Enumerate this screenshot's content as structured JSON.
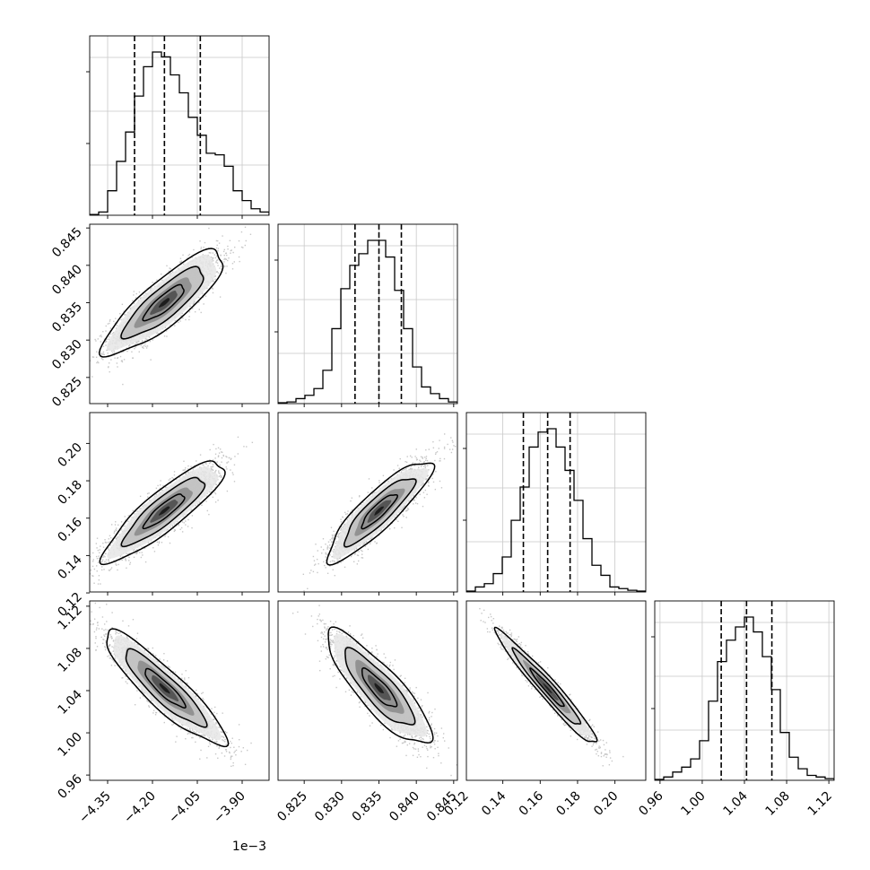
{
  "chart_data": {
    "type": "corner",
    "n_params": 4,
    "grid": true,
    "histogram_color": "#000000",
    "scatter_color": "#9a9a9a",
    "contour_color": "#000000",
    "offset_text": "1e−3",
    "axis_scale_note_param": 0,
    "params": [
      {
        "range": [
          -4.41,
          -3.81
        ],
        "ticks": [
          -4.35,
          -4.2,
          -4.05,
          -3.9
        ],
        "tick_labels": [
          "−4.35",
          "−4.20",
          "−4.05",
          "−3.90"
        ],
        "quantiles": [
          -4.26,
          -4.16,
          -4.04
        ],
        "median": -4.16,
        "sigma": 0.09
      },
      {
        "range": [
          0.8215,
          0.8455
        ],
        "ticks": [
          0.825,
          0.83,
          0.835,
          0.84,
          0.845
        ],
        "tick_labels": [
          "0.825",
          "0.830",
          "0.835",
          "0.840",
          "0.845"
        ],
        "quantiles": [
          0.8318,
          0.835,
          0.838
        ],
        "median": 0.835,
        "sigma": 0.0031
      },
      {
        "range": [
          0.1205,
          0.2165
        ],
        "ticks": [
          0.12,
          0.14,
          0.16,
          0.18,
          0.2
        ],
        "tick_labels": [
          "0.12",
          "0.14",
          "0.16",
          "0.18",
          "0.20"
        ],
        "quantiles": [
          0.151,
          0.164,
          0.176
        ],
        "median": 0.164,
        "sigma": 0.012
      },
      {
        "range": [
          0.955,
          1.125
        ],
        "ticks": [
          0.96,
          1.0,
          1.04,
          1.08,
          1.12
        ],
        "tick_labels": [
          "0.96",
          "1.00",
          "1.04",
          "1.08",
          "1.12"
        ],
        "quantiles": [
          1.018,
          1.042,
          1.066
        ],
        "median": 1.042,
        "sigma": 0.024
      }
    ],
    "correlations": [
      [
        1.0,
        0.85,
        0.88,
        -0.9
      ],
      [
        0.85,
        1.0,
        0.88,
        -0.85
      ],
      [
        0.88,
        0.88,
        1.0,
        -0.97
      ],
      [
        -0.9,
        -0.85,
        -0.97,
        1.0
      ]
    ],
    "histograms": [
      {
        "bin_edges": [
          -4.41,
          -4.38,
          -4.35,
          -4.32,
          -4.29,
          -4.26,
          -4.23,
          -4.2,
          -4.17,
          -4.14,
          -4.11,
          -4.08,
          -4.05,
          -4.02,
          -3.99,
          -3.96,
          -3.93,
          -3.9,
          -3.87,
          -3.84,
          -3.81
        ],
        "counts": [
          0.005,
          0.02,
          0.15,
          0.33,
          0.51,
          0.73,
          0.91,
          1.0,
          0.97,
          0.86,
          0.75,
          0.6,
          0.49,
          0.38,
          0.37,
          0.3,
          0.15,
          0.09,
          0.04,
          0.02
        ]
      },
      {
        "bin_edges": [
          0.8215,
          0.8227,
          0.8239,
          0.8251,
          0.8263,
          0.8275,
          0.8287,
          0.8299,
          0.8311,
          0.8323,
          0.8335,
          0.8347,
          0.8359,
          0.8371,
          0.8383,
          0.8395,
          0.8407,
          0.8419,
          0.8431,
          0.8443,
          0.8455
        ],
        "counts": [
          0.005,
          0.01,
          0.03,
          0.05,
          0.09,
          0.2,
          0.45,
          0.69,
          0.83,
          0.9,
          0.98,
          0.98,
          0.88,
          0.68,
          0.45,
          0.22,
          0.1,
          0.06,
          0.03,
          0.01
        ]
      },
      {
        "bin_edges": [
          0.1205,
          0.1253,
          0.1301,
          0.1349,
          0.1397,
          0.1445,
          0.1493,
          0.1541,
          0.1589,
          0.1637,
          0.1685,
          0.1733,
          0.1781,
          0.1829,
          0.1877,
          0.1925,
          0.1973,
          0.2021,
          0.2069,
          0.2117,
          0.2165
        ],
        "counts": [
          0.005,
          0.03,
          0.05,
          0.11,
          0.21,
          0.43,
          0.63,
          0.87,
          0.96,
          0.98,
          0.87,
          0.73,
          0.55,
          0.32,
          0.16,
          0.1,
          0.03,
          0.02,
          0.01,
          0.005
        ]
      },
      {
        "bin_edges": [
          0.955,
          0.9635,
          0.972,
          0.9805,
          0.989,
          0.9975,
          1.006,
          1.0145,
          1.023,
          1.0315,
          1.04,
          1.0485,
          1.057,
          1.0655,
          1.074,
          1.0825,
          1.091,
          1.0995,
          1.108,
          1.1165,
          1.125
        ],
        "counts": [
          0.005,
          0.02,
          0.05,
          0.08,
          0.13,
          0.24,
          0.48,
          0.72,
          0.85,
          0.93,
          0.99,
          0.9,
          0.75,
          0.55,
          0.29,
          0.14,
          0.07,
          0.03,
          0.02,
          0.01
        ]
      }
    ]
  }
}
